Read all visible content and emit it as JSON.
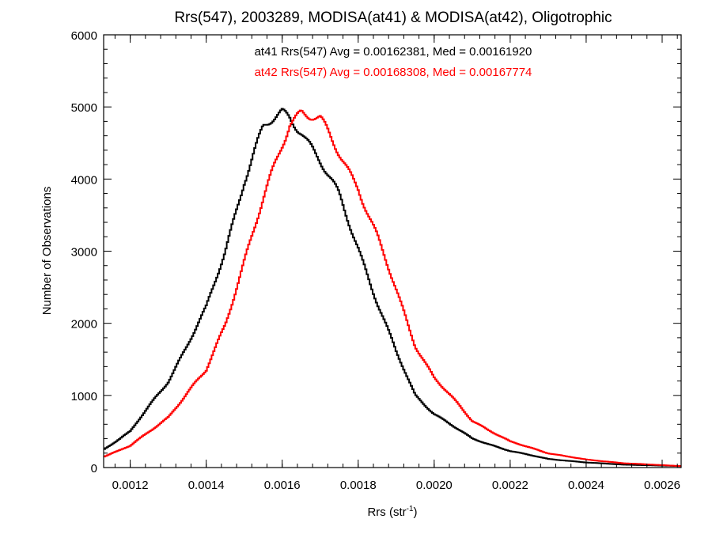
{
  "chart_data": {
    "type": "line",
    "title": "Rrs(547), 2003289, MODISA(at41) & MODISA(at42), Oligotrophic",
    "xlabel": "Rrs (str",
    "xlabel_sup": "-1",
    "xlabel_close": ")",
    "ylabel": "Number of Observations",
    "xlim": [
      0.00113,
      0.00265
    ],
    "ylim": [
      0,
      6000
    ],
    "x_ticks": [
      "0.0012",
      "0.0014",
      "0.0016",
      "0.0018",
      "0.0020",
      "0.0022",
      "0.0024",
      "0.0026"
    ],
    "x_tick_values": [
      0.0012,
      0.0014,
      0.0016,
      0.0018,
      0.002,
      0.0022,
      0.0024,
      0.0026
    ],
    "y_ticks": [
      "0",
      "1000",
      "2000",
      "3000",
      "4000",
      "5000",
      "6000"
    ],
    "y_tick_values": [
      0,
      1000,
      2000,
      3000,
      4000,
      5000,
      6000
    ],
    "grid": false,
    "annotations": [
      {
        "text": "at41 Rrs(547) Avg = 0.00162381, Med = 0.00161920",
        "color": "#000000"
      },
      {
        "text": "at42 Rrs(547) Avg = 0.00168308, Med = 0.00167774",
        "color": "#ff0000"
      }
    ],
    "series": [
      {
        "color": "#000000",
        "x": [
          0.00113,
          0.0012,
          0.0013,
          0.0014,
          0.00145,
          0.0015,
          0.00155,
          0.0016,
          0.00162,
          0.00165,
          0.0017,
          0.00175,
          0.0018,
          0.00185,
          0.0019,
          0.00195,
          0.002,
          0.0021,
          0.0022,
          0.0023,
          0.0024,
          0.0025,
          0.00265
        ],
        "y": [
          250,
          500,
          1200,
          2200,
          3000,
          4000,
          4700,
          4900,
          4850,
          4700,
          4250,
          3750,
          3050,
          2300,
          1600,
          1000,
          750,
          400,
          230,
          120,
          70,
          40,
          20
        ]
      },
      {
        "color": "#ff0000",
        "x": [
          0.00113,
          0.0012,
          0.0013,
          0.0014,
          0.00145,
          0.0015,
          0.00155,
          0.0016,
          0.00162,
          0.00165,
          0.0017,
          0.00175,
          0.0018,
          0.00185,
          0.0019,
          0.00195,
          0.002,
          0.0021,
          0.0022,
          0.0023,
          0.0024,
          0.0025,
          0.00265
        ],
        "y": [
          150,
          300,
          700,
          1350,
          2000,
          2850,
          3700,
          4500,
          4800,
          4950,
          4800,
          4350,
          3900,
          3200,
          2450,
          1700,
          1250,
          650,
          360,
          200,
          110,
          60,
          20
        ]
      }
    ]
  }
}
